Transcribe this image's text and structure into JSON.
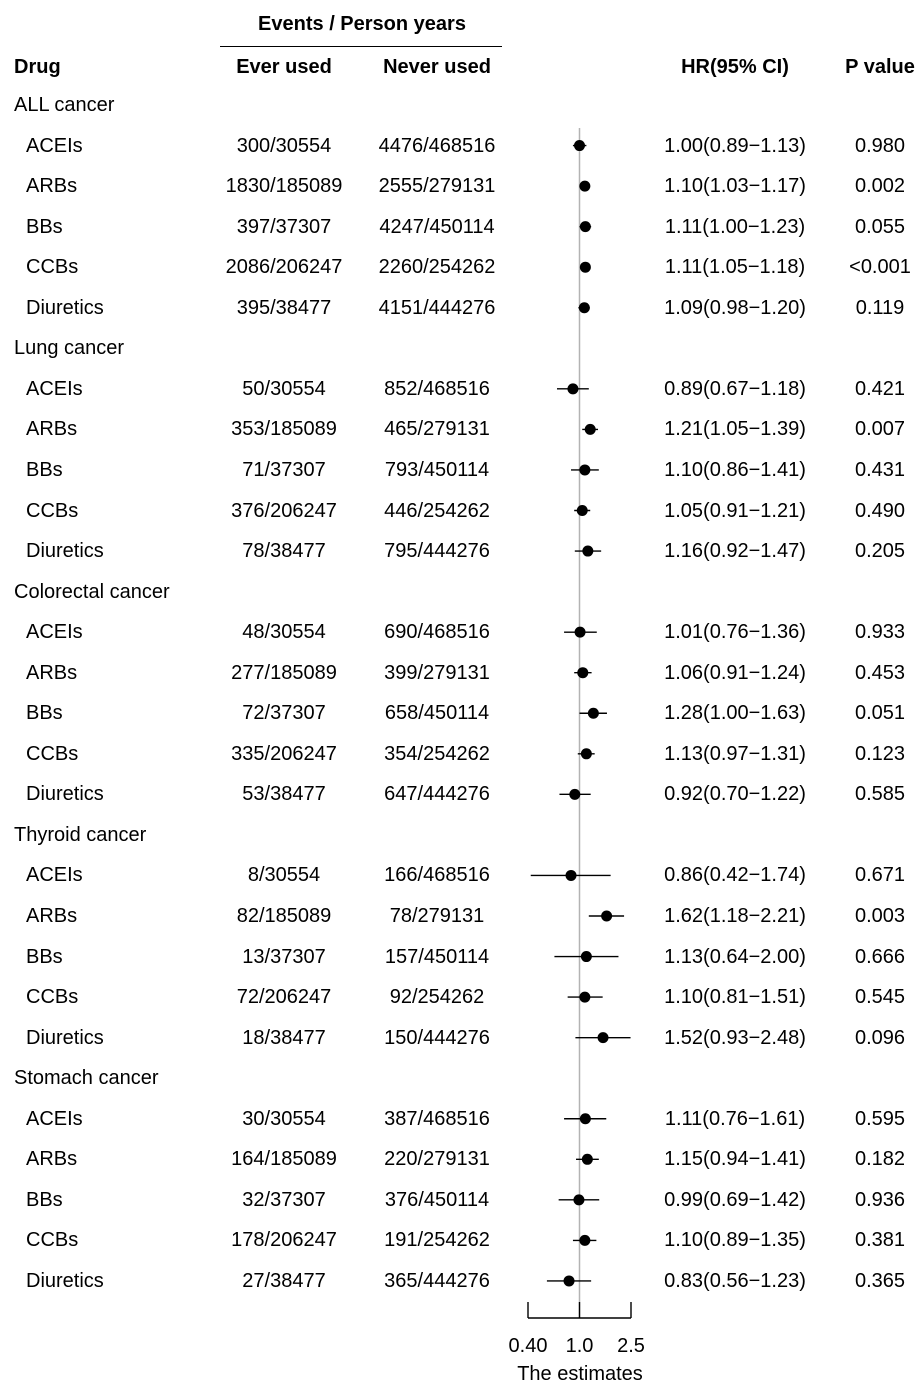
{
  "header": {
    "group_label": "Events / Person years",
    "drug": "Drug",
    "ever_used": "Ever used",
    "never_used": "Never used",
    "hr": "HR(95% CI)",
    "p_value": "P value"
  },
  "chart_data": {
    "type": "forest",
    "title": "",
    "xlabel": "The estimates",
    "x_scale": "log",
    "xlim": [
      0.4,
      2.5
    ],
    "reference_line": 1.0,
    "x_ticks": [
      "0.40",
      "1.0",
      "2.5"
    ],
    "x_tick_values": [
      0.4,
      1.0,
      2.5
    ],
    "groups": [
      {
        "name": "ALL cancer",
        "rows": [
          {
            "drug": "ACEIs",
            "ever": "300/30554",
            "never": "4476/468516",
            "hr_text": "1.00(0.89−1.13)",
            "p": "0.980",
            "hr": 1.0,
            "lo": 0.89,
            "hi": 1.13
          },
          {
            "drug": "ARBs",
            "ever": "1830/185089",
            "never": "2555/279131",
            "hr_text": "1.10(1.03−1.17)",
            "p": "0.002",
            "hr": 1.1,
            "lo": 1.03,
            "hi": 1.17
          },
          {
            "drug": "BBs",
            "ever": "397/37307",
            "never": "4247/450114",
            "hr_text": "1.11(1.00−1.23)",
            "p": "0.055",
            "hr": 1.11,
            "lo": 1.0,
            "hi": 1.23
          },
          {
            "drug": "CCBs",
            "ever": "2086/206247",
            "never": "2260/254262",
            "hr_text": "1.11(1.05−1.18)",
            "p": "<0.001",
            "hr": 1.11,
            "lo": 1.05,
            "hi": 1.18
          },
          {
            "drug": "Diuretics",
            "ever": "395/38477",
            "never": "4151/444276",
            "hr_text": "1.09(0.98−1.20)",
            "p": "0.119",
            "hr": 1.09,
            "lo": 0.98,
            "hi": 1.2
          }
        ]
      },
      {
        "name": "Lung cancer",
        "rows": [
          {
            "drug": "ACEIs",
            "ever": "50/30554",
            "never": "852/468516",
            "hr_text": "0.89(0.67−1.18)",
            "p": "0.421",
            "hr": 0.89,
            "lo": 0.67,
            "hi": 1.18
          },
          {
            "drug": "ARBs",
            "ever": "353/185089",
            "never": "465/279131",
            "hr_text": "1.21(1.05−1.39)",
            "p": "0.007",
            "hr": 1.21,
            "lo": 1.05,
            "hi": 1.39
          },
          {
            "drug": "BBs",
            "ever": "71/37307",
            "never": "793/450114",
            "hr_text": "1.10(0.86−1.41)",
            "p": "0.431",
            "hr": 1.1,
            "lo": 0.86,
            "hi": 1.41
          },
          {
            "drug": "CCBs",
            "ever": "376/206247",
            "never": "446/254262",
            "hr_text": "1.05(0.91−1.21)",
            "p": "0.490",
            "hr": 1.05,
            "lo": 0.91,
            "hi": 1.21
          },
          {
            "drug": "Diuretics",
            "ever": "78/38477",
            "never": "795/444276",
            "hr_text": "1.16(0.92−1.47)",
            "p": "0.205",
            "hr": 1.16,
            "lo": 0.92,
            "hi": 1.47
          }
        ]
      },
      {
        "name": "Colorectal cancer",
        "rows": [
          {
            "drug": "ACEIs",
            "ever": "48/30554",
            "never": "690/468516",
            "hr_text": "1.01(0.76−1.36)",
            "p": "0.933",
            "hr": 1.01,
            "lo": 0.76,
            "hi": 1.36
          },
          {
            "drug": "ARBs",
            "ever": "277/185089",
            "never": "399/279131",
            "hr_text": "1.06(0.91−1.24)",
            "p": "0.453",
            "hr": 1.06,
            "lo": 0.91,
            "hi": 1.24
          },
          {
            "drug": "BBs",
            "ever": "72/37307",
            "never": "658/450114",
            "hr_text": "1.28(1.00−1.63)",
            "p": "0.051",
            "hr": 1.28,
            "lo": 1.0,
            "hi": 1.63
          },
          {
            "drug": "CCBs",
            "ever": "335/206247",
            "never": "354/254262",
            "hr_text": "1.13(0.97−1.31)",
            "p": "0.123",
            "hr": 1.13,
            "lo": 0.97,
            "hi": 1.31
          },
          {
            "drug": "Diuretics",
            "ever": "53/38477",
            "never": "647/444276",
            "hr_text": "0.92(0.70−1.22)",
            "p": "0.585",
            "hr": 0.92,
            "lo": 0.7,
            "hi": 1.22
          }
        ]
      },
      {
        "name": "Thyroid cancer",
        "rows": [
          {
            "drug": "ACEIs",
            "ever": "8/30554",
            "never": "166/468516",
            "hr_text": "0.86(0.42−1.74)",
            "p": "0.671",
            "hr": 0.86,
            "lo": 0.42,
            "hi": 1.74
          },
          {
            "drug": "ARBs",
            "ever": "82/185089",
            "never": "78/279131",
            "hr_text": "1.62(1.18−2.21)",
            "p": "0.003",
            "hr": 1.62,
            "lo": 1.18,
            "hi": 2.21
          },
          {
            "drug": "BBs",
            "ever": "13/37307",
            "never": "157/450114",
            "hr_text": "1.13(0.64−2.00)",
            "p": "0.666",
            "hr": 1.13,
            "lo": 0.64,
            "hi": 2.0
          },
          {
            "drug": "CCBs",
            "ever": "72/206247",
            "never": "92/254262",
            "hr_text": "1.10(0.81−1.51)",
            "p": "0.545",
            "hr": 1.1,
            "lo": 0.81,
            "hi": 1.51
          },
          {
            "drug": "Diuretics",
            "ever": "18/38477",
            "never": "150/444276",
            "hr_text": "1.52(0.93−2.48)",
            "p": "0.096",
            "hr": 1.52,
            "lo": 0.93,
            "hi": 2.48
          }
        ]
      },
      {
        "name": "Stomach cancer",
        "rows": [
          {
            "drug": "ACEIs",
            "ever": "30/30554",
            "never": "387/468516",
            "hr_text": "1.11(0.76−1.61)",
            "p": "0.595",
            "hr": 1.11,
            "lo": 0.76,
            "hi": 1.61
          },
          {
            "drug": "ARBs",
            "ever": "164/185089",
            "never": "220/279131",
            "hr_text": "1.15(0.94−1.41)",
            "p": "0.182",
            "hr": 1.15,
            "lo": 0.94,
            "hi": 1.41
          },
          {
            "drug": "BBs",
            "ever": "32/37307",
            "never": "376/450114",
            "hr_text": "0.99(0.69−1.42)",
            "p": "0.936",
            "hr": 0.99,
            "lo": 0.69,
            "hi": 1.42
          },
          {
            "drug": "CCBs",
            "ever": "178/206247",
            "never": "191/254262",
            "hr_text": "1.10(0.89−1.35)",
            "p": "0.381",
            "hr": 1.1,
            "lo": 0.89,
            "hi": 1.35
          },
          {
            "drug": "Diuretics",
            "ever": "27/38477",
            "never": "365/444276",
            "hr_text": "0.83(0.56−1.23)",
            "p": "0.365",
            "hr": 0.83,
            "lo": 0.56,
            "hi": 1.23
          }
        ]
      }
    ]
  }
}
